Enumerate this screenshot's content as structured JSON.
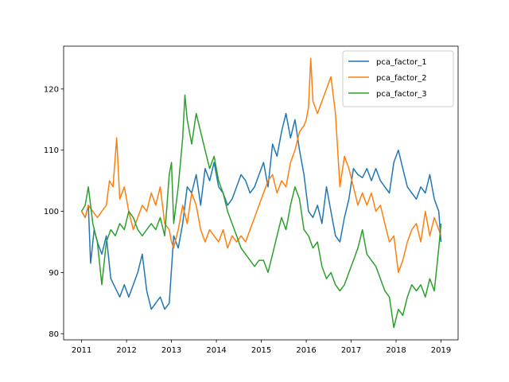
{
  "chart_data": {
    "type": "line",
    "title": "",
    "xlabel": "",
    "ylabel": "",
    "xlim": [
      2010.6,
      2019.38
    ],
    "ylim": [
      79,
      127
    ],
    "xticks": [
      {
        "value": 2011,
        "label": "2011"
      },
      {
        "value": 2012,
        "label": "2012"
      },
      {
        "value": 2013,
        "label": "2013"
      },
      {
        "value": 2014,
        "label": "2014"
      },
      {
        "value": 2015,
        "label": "2015"
      },
      {
        "value": 2016,
        "label": "2016"
      },
      {
        "value": 2017,
        "label": "2017"
      },
      {
        "value": 2018,
        "label": "2018"
      },
      {
        "value": 2019,
        "label": "2019"
      }
    ],
    "yticks": [
      {
        "value": 80,
        "label": "80"
      },
      {
        "value": 90,
        "label": "90"
      },
      {
        "value": 100,
        "label": "100"
      },
      {
        "value": 110,
        "label": "110"
      },
      {
        "value": 120,
        "label": "120"
      }
    ],
    "grid": false,
    "legend": "top-right",
    "series": [
      {
        "name": "pca_factor_1",
        "color": "#1f77b4",
        "x": [
          2011.0,
          2011.08,
          2011.15,
          2011.2,
          2011.28,
          2011.35,
          2011.45,
          2011.55,
          2011.65,
          2011.75,
          2011.85,
          2011.95,
          2012.05,
          2012.15,
          2012.25,
          2012.35,
          2012.45,
          2012.55,
          2012.65,
          2012.75,
          2012.85,
          2012.95,
          2013.05,
          2013.15,
          2013.25,
          2013.35,
          2013.45,
          2013.55,
          2013.65,
          2013.75,
          2013.85,
          2013.95,
          2014.05,
          2014.15,
          2014.25,
          2014.35,
          2014.45,
          2014.55,
          2014.65,
          2014.75,
          2014.85,
          2014.95,
          2015.05,
          2015.15,
          2015.25,
          2015.35,
          2015.45,
          2015.55,
          2015.65,
          2015.75,
          2015.85,
          2015.95,
          2016.05,
          2016.15,
          2016.25,
          2016.35,
          2016.45,
          2016.55,
          2016.65,
          2016.75,
          2016.85,
          2016.95,
          2017.05,
          2017.15,
          2017.25,
          2017.35,
          2017.45,
          2017.55,
          2017.65,
          2017.75,
          2017.85,
          2017.95,
          2018.0,
          2018.05,
          2018.15,
          2018.25,
          2018.35,
          2018.45,
          2018.55,
          2018.65,
          2018.75,
          2018.85,
          2018.95,
          2019.0
        ],
        "y": [
          100,
          99,
          101,
          91.5,
          97,
          95,
          93,
          96,
          89,
          87.5,
          86,
          88,
          86,
          88,
          90,
          93,
          87,
          84,
          85,
          86,
          84,
          85,
          96,
          94,
          98,
          104,
          103,
          106,
          101,
          107,
          105,
          108,
          104,
          103,
          101,
          102,
          104,
          106,
          105,
          103,
          104,
          106,
          108,
          104,
          111,
          109,
          113,
          116,
          112,
          115,
          110,
          106,
          100,
          99,
          101,
          98,
          104,
          100,
          96,
          95,
          99,
          102,
          107,
          106,
          105.5,
          107,
          105,
          107,
          105,
          104,
          103,
          108,
          109,
          110,
          107,
          104,
          103,
          102,
          104,
          103,
          106,
          102,
          100,
          95
        ]
      },
      {
        "name": "pca_factor_2",
        "color": "#ff7f0e",
        "x": [
          2011.0,
          2011.08,
          2011.15,
          2011.25,
          2011.35,
          2011.45,
          2011.55,
          2011.62,
          2011.7,
          2011.78,
          2011.85,
          2011.95,
          2012.05,
          2012.15,
          2012.25,
          2012.35,
          2012.45,
          2012.55,
          2012.65,
          2012.75,
          2012.85,
          2012.95,
          2013.0,
          2013.05,
          2013.15,
          2013.25,
          2013.35,
          2013.45,
          2013.55,
          2013.65,
          2013.75,
          2013.85,
          2013.95,
          2014.05,
          2014.15,
          2014.25,
          2014.35,
          2014.45,
          2014.55,
          2014.65,
          2014.75,
          2014.85,
          2014.95,
          2015.05,
          2015.15,
          2015.25,
          2015.35,
          2015.45,
          2015.55,
          2015.65,
          2015.75,
          2015.85,
          2015.95,
          2016.0,
          2016.05,
          2016.1,
          2016.15,
          2016.25,
          2016.35,
          2016.45,
          2016.55,
          2016.65,
          2016.75,
          2016.85,
          2016.95,
          2017.05,
          2017.15,
          2017.25,
          2017.35,
          2017.45,
          2017.55,
          2017.65,
          2017.75,
          2017.85,
          2017.95,
          2018.05,
          2018.15,
          2018.25,
          2018.35,
          2018.45,
          2018.55,
          2018.65,
          2018.75,
          2018.85,
          2018.95,
          2019.0
        ],
        "y": [
          100,
          99,
          101,
          100,
          99,
          100,
          101,
          105,
          104,
          112,
          102,
          104,
          100,
          97,
          99,
          101,
          100,
          103,
          101,
          104,
          98,
          97,
          95,
          94,
          97,
          101,
          98,
          103,
          101,
          97,
          95,
          97,
          96,
          95,
          97,
          94,
          96,
          95,
          96,
          95,
          97,
          99,
          101,
          103,
          105,
          106,
          103,
          105,
          104,
          108,
          110,
          113,
          114,
          115,
          117,
          125,
          118,
          116,
          118,
          120,
          122,
          116,
          104,
          109,
          107,
          104,
          101,
          103,
          101,
          103,
          100,
          101,
          98,
          95,
          96,
          90,
          92,
          95,
          97,
          98,
          95,
          100,
          96,
          99,
          97,
          96
        ]
      },
      {
        "name": "pca_factor_3",
        "color": "#2ca02c",
        "x": [
          2011.0,
          2011.08,
          2011.15,
          2011.25,
          2011.35,
          2011.45,
          2011.55,
          2011.65,
          2011.75,
          2011.85,
          2011.95,
          2012.05,
          2012.15,
          2012.25,
          2012.35,
          2012.45,
          2012.55,
          2012.65,
          2012.75,
          2012.85,
          2012.95,
          2013.0,
          2013.05,
          2013.15,
          2013.25,
          2013.3,
          2013.35,
          2013.45,
          2013.55,
          2013.65,
          2013.75,
          2013.85,
          2013.95,
          2014.05,
          2014.15,
          2014.25,
          2014.35,
          2014.45,
          2014.55,
          2014.65,
          2014.75,
          2014.85,
          2014.95,
          2015.05,
          2015.15,
          2015.25,
          2015.35,
          2015.45,
          2015.55,
          2015.65,
          2015.75,
          2015.85,
          2015.95,
          2016.05,
          2016.15,
          2016.25,
          2016.35,
          2016.45,
          2016.55,
          2016.65,
          2016.75,
          2016.85,
          2016.95,
          2017.05,
          2017.15,
          2017.25,
          2017.35,
          2017.45,
          2017.55,
          2017.65,
          2017.75,
          2017.85,
          2017.95,
          2018.05,
          2018.15,
          2018.25,
          2018.35,
          2018.45,
          2018.55,
          2018.65,
          2018.75,
          2018.85,
          2018.95,
          2019.0
        ],
        "y": [
          100,
          101,
          104,
          98,
          95,
          88,
          95,
          97,
          96,
          98,
          97,
          100,
          99,
          97,
          96,
          97,
          98,
          97,
          99,
          96,
          106,
          108,
          98,
          104,
          112,
          119,
          115,
          111,
          116,
          113,
          110,
          107,
          109,
          105,
          103,
          100,
          98,
          96,
          94,
          93,
          92,
          91,
          92,
          92,
          90,
          93,
          96,
          99,
          97,
          101,
          104,
          102,
          97,
          96,
          94,
          95,
          91,
          89,
          90,
          88,
          87,
          88,
          90,
          92,
          94,
          97,
          93,
          92,
          91,
          89,
          87,
          86,
          81,
          84,
          83,
          86,
          88,
          87,
          88,
          86,
          89,
          87,
          94,
          98
        ]
      }
    ]
  }
}
